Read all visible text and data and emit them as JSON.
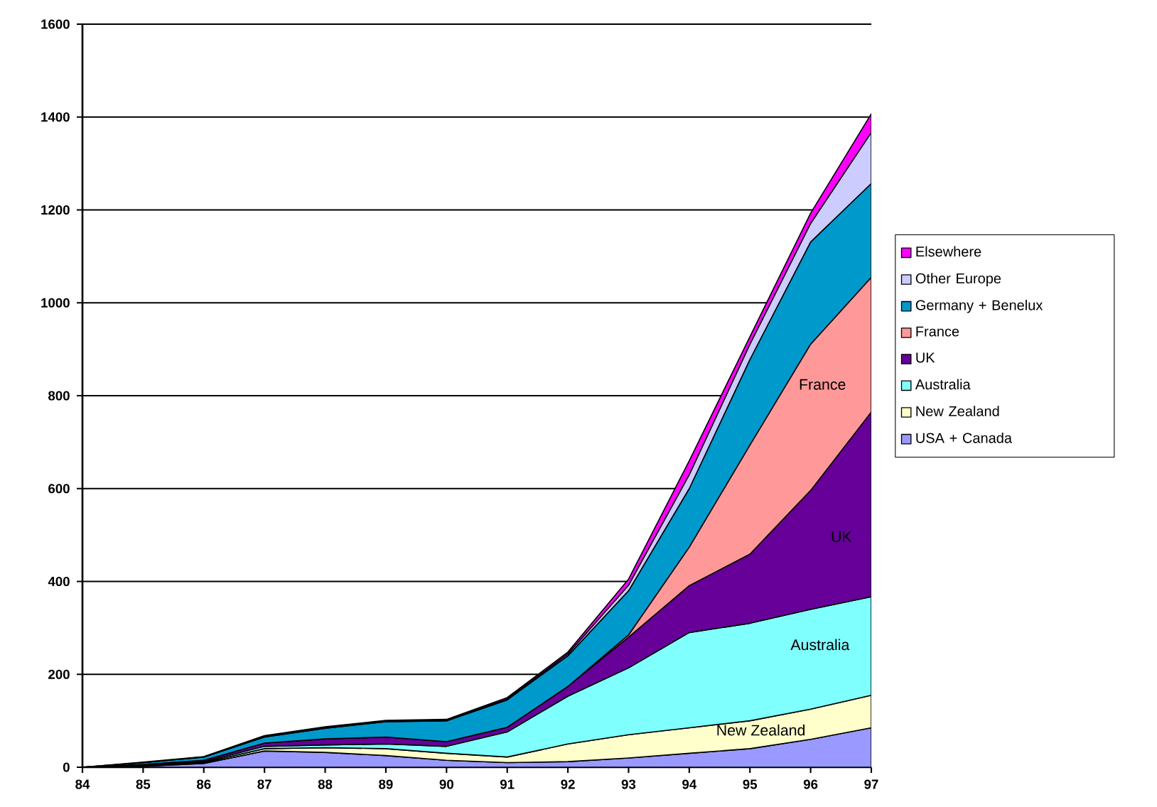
{
  "chart_data": {
    "type": "area",
    "stacked": true,
    "categories": [
      "84",
      "85",
      "86",
      "87",
      "88",
      "89",
      "90",
      "91",
      "92",
      "93",
      "94",
      "95",
      "96",
      "97"
    ],
    "series": [
      {
        "name": "USA + Canada",
        "color": "#9999ff",
        "values": [
          0,
          2,
          8,
          35,
          32,
          25,
          15,
          10,
          12,
          20,
          30,
          40,
          60,
          85
        ]
      },
      {
        "name": "New Zealand",
        "color": "#ffffcc",
        "values": [
          0,
          1,
          2,
          5,
          10,
          15,
          15,
          12,
          38,
          50,
          55,
          60,
          65,
          70
        ]
      },
      {
        "name": "Australia",
        "color": "#80ffff",
        "values": [
          0,
          1,
          2,
          5,
          6,
          10,
          15,
          54,
          103,
          144,
          205,
          210,
          215,
          212
        ]
      },
      {
        "name": "UK",
        "color": "#660099",
        "values": [
          0,
          2,
          3,
          7,
          13,
          15,
          10,
          10,
          21,
          66,
          101,
          149,
          256,
          398
        ]
      },
      {
        "name": "France",
        "color": "#ff9999",
        "values": [
          0,
          0,
          0,
          0,
          0,
          0,
          0,
          0,
          0,
          5,
          83,
          235,
          315,
          290
        ]
      },
      {
        "name": "Germany + Benelux",
        "color": "#0099cc",
        "values": [
          0,
          4,
          7,
          13,
          23,
          33,
          45,
          59,
          66,
          95,
          126,
          184,
          220,
          202
        ]
      },
      {
        "name": "Other Europe",
        "color": "#ccccff",
        "values": [
          0,
          0,
          0,
          1,
          1,
          1,
          1,
          2,
          4,
          12,
          30,
          33,
          40,
          110
        ]
      },
      {
        "name": "Elsewhere",
        "color": "#ff00ff",
        "values": [
          0,
          1,
          1,
          2,
          2,
          2,
          2,
          3,
          4,
          13,
          30,
          16,
          22,
          40
        ]
      }
    ],
    "ylim": [
      0,
      1600
    ],
    "yticks": [
      0,
      200,
      400,
      600,
      800,
      1000,
      1200,
      1400,
      1600
    ],
    "grid": "y",
    "legend": "right",
    "annotations": [
      "France",
      "UK",
      "Australia",
      "New Zealand"
    ]
  }
}
